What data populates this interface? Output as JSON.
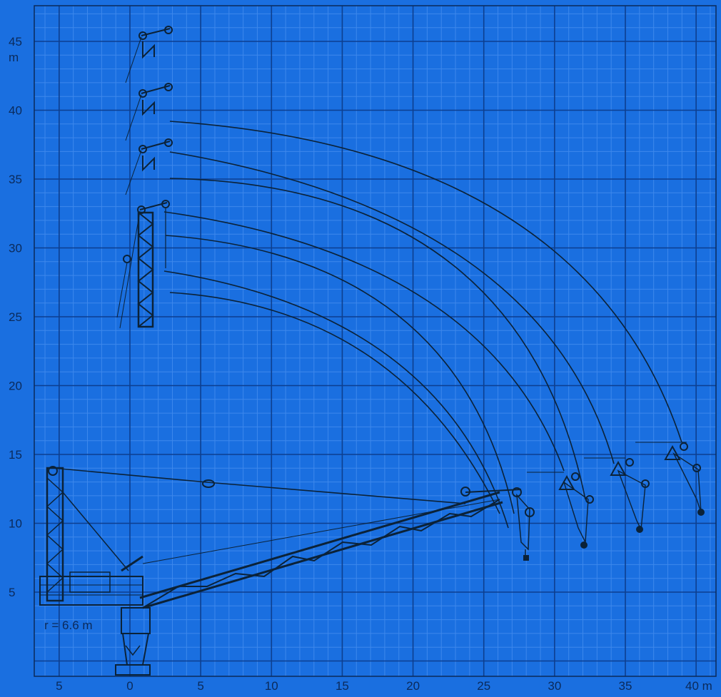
{
  "colors": {
    "background": "#1a6fe0",
    "grid_minor": "#3e88ec",
    "grid_major": "#0d3f8f",
    "ink": "#0b2238"
  },
  "axes": {
    "y_unit": "m",
    "x_unit": "40 m",
    "y_ticks": [
      {
        "value": 45,
        "label": "45"
      },
      {
        "value": 40,
        "label": "40"
      },
      {
        "value": 35,
        "label": "35"
      },
      {
        "value": 30,
        "label": "30"
      },
      {
        "value": 25,
        "label": "25"
      },
      {
        "value": 20,
        "label": "20"
      },
      {
        "value": 15,
        "label": "15"
      },
      {
        "value": 10,
        "label": "10"
      },
      {
        "value": 5,
        "label": "5"
      }
    ],
    "x_ticks": [
      {
        "value": -5,
        "label": "5"
      },
      {
        "value": 0,
        "label": "0"
      },
      {
        "value": 5,
        "label": "5"
      },
      {
        "value": 10,
        "label": "10"
      },
      {
        "value": 15,
        "label": "15"
      },
      {
        "value": 20,
        "label": "20"
      },
      {
        "value": 25,
        "label": "25"
      },
      {
        "value": 30,
        "label": "30"
      },
      {
        "value": 35,
        "label": "35"
      }
    ]
  },
  "annotation": {
    "tail_radius": "r = 6.6 m"
  }
}
